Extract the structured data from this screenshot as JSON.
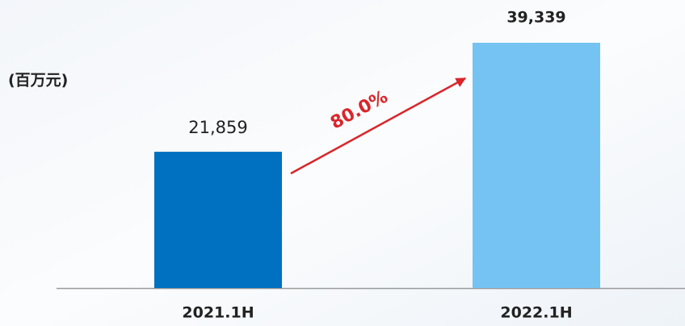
{
  "chart_data": {
    "type": "bar",
    "y_label": "(百万元)",
    "categories": [
      "2021.1H",
      "2022.1H"
    ],
    "values": [
      21859,
      39339
    ],
    "value_labels": [
      "21,859",
      "39,339"
    ],
    "colors": [
      "#0070c0",
      "#75c3f2"
    ],
    "annotation": "80.0%",
    "annotation_color": "#d9262b"
  }
}
